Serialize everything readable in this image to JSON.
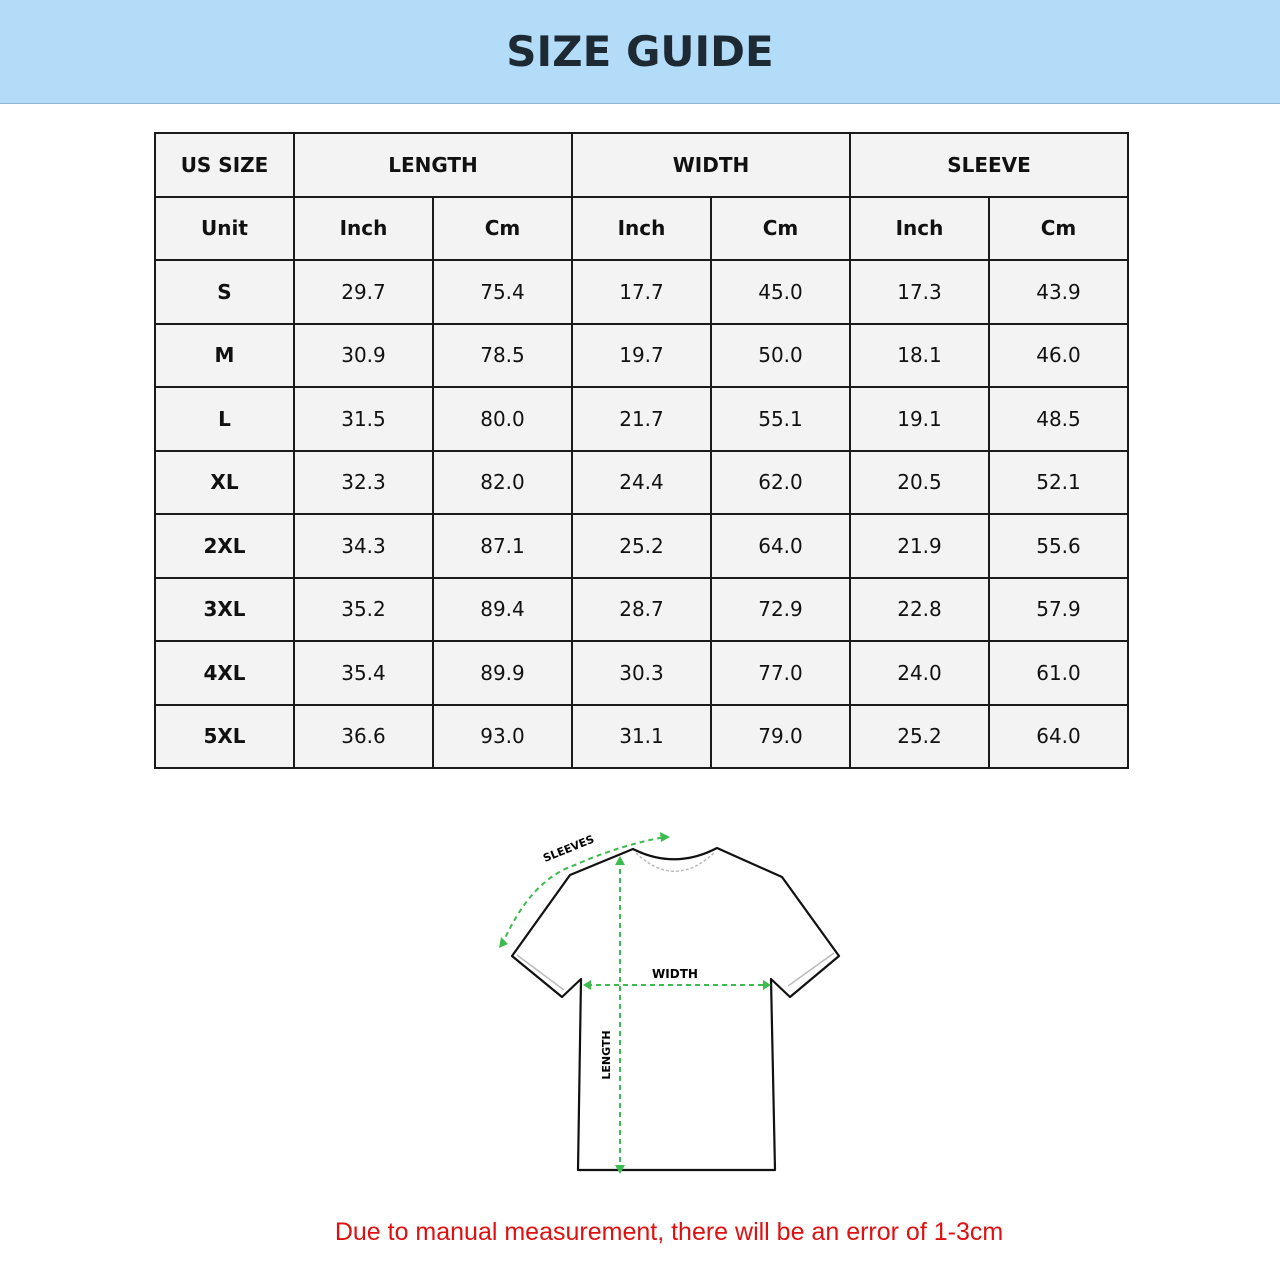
{
  "title": "SIZE GUIDE",
  "table": {
    "group_headers": [
      "US SIZE",
      "LENGTH",
      "WIDTH",
      "SLEEVE"
    ],
    "unit_row": [
      "Unit",
      "Inch",
      "Cm",
      "Inch",
      "Cm",
      "Inch",
      "Cm"
    ],
    "rows": [
      [
        "S",
        "29.7",
        "75.4",
        "17.7",
        "45.0",
        "17.3",
        "43.9"
      ],
      [
        "M",
        "30.9",
        "78.5",
        "19.7",
        "50.0",
        "18.1",
        "46.0"
      ],
      [
        "L",
        "31.5",
        "80.0",
        "21.7",
        "55.1",
        "19.1",
        "48.5"
      ],
      [
        "XL",
        "32.3",
        "82.0",
        "24.4",
        "62.0",
        "20.5",
        "52.1"
      ],
      [
        "2XL",
        "34.3",
        "87.1",
        "25.2",
        "64.0",
        "21.9",
        "55.6"
      ],
      [
        "3XL",
        "35.2",
        "89.4",
        "28.7",
        "72.9",
        "22.8",
        "57.9"
      ],
      [
        "4XL",
        "35.4",
        "89.9",
        "30.3",
        "77.0",
        "24.0",
        "61.0"
      ],
      [
        "5XL",
        "36.6",
        "93.0",
        "31.1",
        "79.0",
        "25.2",
        "64.0"
      ]
    ]
  },
  "diagram": {
    "sleeves_label": "SLEEVES",
    "width_label": "WIDTH",
    "length_label": "LENGTH",
    "arrow_color": "#3dbb4f"
  },
  "note": "Due to manual measurement, there will be an error of 1-3cm",
  "colors": {
    "banner": "#b3dcf9",
    "note": "#e01010"
  }
}
